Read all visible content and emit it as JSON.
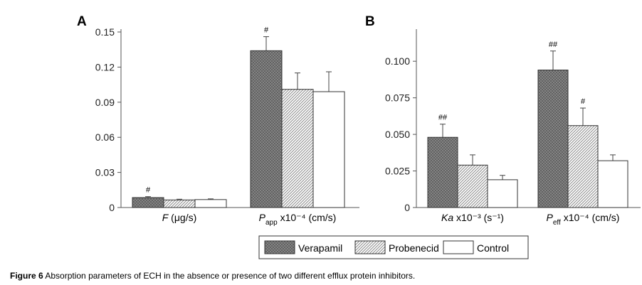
{
  "figure": {
    "caption_label": "Figure 6",
    "caption_text": "Absorption parameters of ECH in the absence or presence of two different efflux protein inhibitors."
  },
  "legend": [
    {
      "name": "Verapamil",
      "pattern": "crosshatch",
      "color": "#7a7a7a"
    },
    {
      "name": "Probenecid",
      "pattern": "diagonal",
      "color": "#b8b8b8"
    },
    {
      "name": "Control",
      "pattern": "none",
      "color": "#ffffff"
    }
  ],
  "chart_data": [
    {
      "panel": "A",
      "type": "bar",
      "ylim": [
        0,
        0.15
      ],
      "yticks": [
        "0",
        "0.03",
        "0.06",
        "0.09",
        "0.12",
        "0.15"
      ],
      "groups": [
        {
          "label_main": "F",
          "label_rest": " (μg/s)",
          "label_sub": "",
          "label_after": "",
          "values": [
            0.0085,
            0.0065,
            0.0068
          ],
          "errors": [
            0.0008,
            0.0006,
            0.0006
          ],
          "marks": [
            "#",
            "",
            ""
          ]
        },
        {
          "label_main": "P",
          "label_sub": "app",
          "label_rest": "",
          "label_after": " x10⁻⁴ (cm/s)",
          "values": [
            0.134,
            0.101,
            0.099
          ],
          "errors": [
            0.012,
            0.014,
            0.017
          ],
          "marks": [
            "#",
            "",
            ""
          ]
        }
      ]
    },
    {
      "panel": "B",
      "type": "bar",
      "ylim": [
        0,
        0.12
      ],
      "yticks": [
        "0",
        "0.025",
        "0.050",
        "0.075",
        "0.100"
      ],
      "groups": [
        {
          "label_main": "Ka",
          "label_sub": "",
          "label_rest": "",
          "label_after": " x10⁻³ (s⁻¹)",
          "values": [
            0.048,
            0.029,
            0.019
          ],
          "errors": [
            0.009,
            0.007,
            0.003
          ],
          "marks": [
            "##",
            "",
            ""
          ]
        },
        {
          "label_main": "P",
          "label_sub": "eff",
          "label_rest": "",
          "label_after": " x10⁻⁴ (cm/s)",
          "values": [
            0.094,
            0.056,
            0.032
          ],
          "errors": [
            0.013,
            0.012,
            0.004
          ],
          "marks": [
            "##",
            "#",
            ""
          ]
        }
      ]
    }
  ]
}
